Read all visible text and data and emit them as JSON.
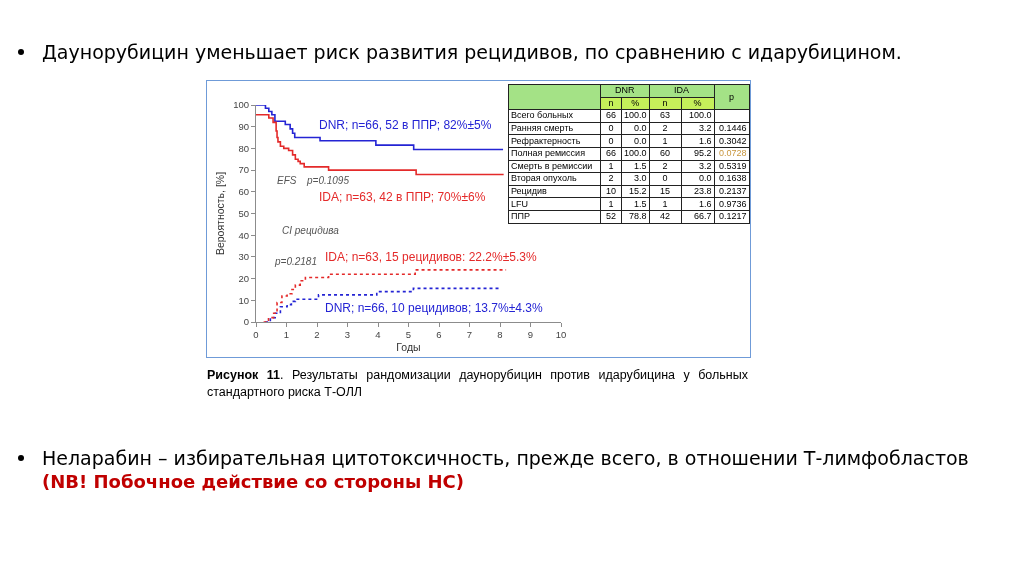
{
  "chart_data": [
    {
      "type": "step",
      "title": "Даунорубицин уменьшает риск развития рецидивов, по сравнению с идарубицином.",
      "xlabel": "Годы",
      "ylabel": "Вероятность, [%]",
      "annotations": [
        "Рисунок 11. Результаты рандомизации даунорубицин против идарубицина у больных стандартного риска Т-ОЛЛ",
        "EFS",
        "p=0.1095",
        "CI рецидива",
        "p=0.2181",
        "Неларабин – избирательная цитотоксичность, прежде всего, в отношении Т-лимфобластов",
        "(NB! Побочное действие со стороны НС)"
      ],
      "xlim": [
        0,
        10
      ],
      "xticks": [
        0,
        1,
        2,
        3,
        4,
        5,
        6,
        7,
        8,
        9,
        10
      ],
      "ylim": [
        0,
        100
      ],
      "yticks": [
        0,
        10,
        20,
        30,
        40,
        50,
        60,
        70,
        80,
        90,
        100
      ],
      "series": [
        {
          "name": "DNR; n=66, 52 в ППР; 82%±5%",
          "color": "#2424d4",
          "line_style": "solid",
          "x": [
            0,
            0.31,
            0.42,
            0.52,
            0.62,
            0.96,
            1.12,
            1.2,
            1.27,
            2.1,
            3.93,
            5.17,
            8.1
          ],
          "values": [
            100,
            98.5,
            97,
            95.5,
            92.5,
            91,
            89,
            87,
            85,
            83.5,
            81.5,
            79.5,
            79.5
          ]
        },
        {
          "name": "IDA; n=63, 42 в ППР; 70%±6%",
          "color": "#e42a2a",
          "line_style": "solid",
          "x": [
            0,
            0.42,
            0.56,
            0.66,
            0.69,
            0.72,
            0.8,
            0.91,
            1.07,
            1.2,
            1.29,
            1.38,
            1.45,
            1.58,
            2.38,
            5.25,
            8.12
          ],
          "values": [
            95.5,
            94,
            92,
            88,
            85,
            83,
            81,
            80,
            79,
            77,
            75,
            74,
            73,
            71.5,
            70,
            68,
            68
          ]
        },
        {
          "name": "DNR; n=66, 10 рецидивов; 13.7%±4.3%",
          "color": "#2424d4",
          "line_style": "dotted",
          "x": [
            0.3,
            0.47,
            0.63,
            0.8,
            1.02,
            1.16,
            1.29,
            2.05,
            3.96,
            5.16,
            8.0
          ],
          "values": [
            0,
            2,
            4,
            7,
            8,
            9.5,
            10.5,
            12.5,
            14,
            15.5,
            15.5
          ]
        },
        {
          "name": "IDA; n=63, 15 рецидивов: 22.2%±5.3%",
          "color": "#e42a2a",
          "line_style": "dotted",
          "x": [
            0.25,
            0.41,
            0.58,
            0.69,
            0.85,
            1.02,
            1.18,
            1.29,
            1.45,
            1.62,
            2.38,
            5.22,
            8.2
          ],
          "values": [
            0,
            2,
            4,
            9,
            12,
            13,
            15,
            17,
            19,
            20.5,
            22,
            24,
            24
          ]
        }
      ]
    },
    {
      "type": "other",
      "annotations": [
        "DNR",
        "IDA"
      ],
      "data_labels": true,
      "categories": [
        "Всего больных",
        "Ранняя смерть",
        "Рефрактерность",
        "Полная ремиссия",
        "Смерть в ремиссии",
        "Вторая опухоль",
        "Рецидив",
        "LFU",
        "ППР"
      ],
      "series": [
        {
          "name": "n",
          "values": [
            66,
            0,
            0,
            66,
            1,
            2,
            10,
            1,
            52
          ]
        },
        {
          "name": "%",
          "values": [
            100,
            0,
            0,
            100,
            1.5,
            3,
            15.2,
            1.5,
            78.8
          ],
          "value_labels": [
            "100.0",
            "0.0",
            "0.0",
            "100.0",
            "1.5",
            "3.0",
            "15.2",
            "1.5",
            "78.8"
          ]
        },
        {
          "name": "n",
          "values": [
            63,
            2,
            1,
            60,
            2,
            0,
            15,
            1,
            42
          ]
        },
        {
          "name": "%",
          "values": [
            100,
            3.2,
            1.6,
            95.2,
            3.2,
            0,
            23.8,
            1.6,
            66.7
          ],
          "value_labels": [
            "100.0",
            "3.2",
            "1.6",
            "95.2",
            "3.2",
            "0.0",
            "23.8",
            "1.6",
            "66.7"
          ]
        },
        {
          "name": "p",
          "values": [
            null,
            0.1446,
            0.3042,
            0.0728,
            0.5319,
            0.1638,
            0.2137,
            0.9736,
            0.1217
          ],
          "colors": [
            "#000000",
            "#000000",
            "#000000",
            "#c8963e",
            "#000000",
            "#000000",
            "#000000",
            "#000000",
            "#000000"
          ]
        }
      ]
    }
  ]
}
